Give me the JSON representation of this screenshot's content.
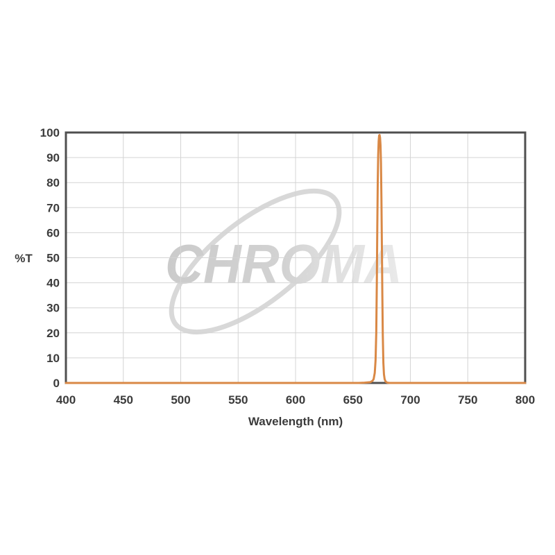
{
  "page": {
    "background_color": "#ffffff"
  },
  "watermark": {
    "text": "CHROMA",
    "ellipse_color": "#d8d8d8",
    "text_color_start": "#cccccc",
    "text_color_end": "#e9e9e9"
  },
  "chart_data": {
    "type": "line",
    "title": "",
    "xlabel": "Wavelength (nm)",
    "ylabel": "%T",
    "xlim": [
      400,
      800
    ],
    "ylim": [
      0,
      100
    ],
    "xticks": [
      400,
      450,
      500,
      550,
      600,
      650,
      700,
      750,
      800
    ],
    "yticks": [
      0,
      10,
      20,
      30,
      40,
      50,
      60,
      70,
      80,
      90,
      100
    ],
    "grid": true,
    "legend": false,
    "grid_color": "#d4d4d4",
    "border_color": "#4f4f4f",
    "tick_label_color": "#3b3b3b",
    "series": [
      {
        "name": "%T",
        "color": "#d98845",
        "points": [
          [
            400,
            0
          ],
          [
            420,
            0
          ],
          [
            440,
            0
          ],
          [
            460,
            0
          ],
          [
            480,
            0
          ],
          [
            500,
            0
          ],
          [
            520,
            0
          ],
          [
            540,
            0
          ],
          [
            560,
            0
          ],
          [
            580,
            0
          ],
          [
            600,
            0
          ],
          [
            620,
            0
          ],
          [
            640,
            0
          ],
          [
            655,
            0
          ],
          [
            660,
            0.1
          ],
          [
            665,
            0.3
          ],
          [
            667,
            0.8
          ],
          [
            668,
            1.5
          ],
          [
            669,
            4
          ],
          [
            669.7,
            9
          ],
          [
            670.3,
            20
          ],
          [
            670.8,
            40
          ],
          [
            671.2,
            62
          ],
          [
            671.6,
            80
          ],
          [
            672,
            91
          ],
          [
            672.4,
            96.5
          ],
          [
            672.8,
            98.8
          ],
          [
            673.2,
            99
          ],
          [
            673.6,
            98
          ],
          [
            674,
            95
          ],
          [
            674.4,
            88
          ],
          [
            674.8,
            74
          ],
          [
            675.2,
            55
          ],
          [
            675.6,
            35
          ],
          [
            676,
            19
          ],
          [
            676.5,
            8
          ],
          [
            677,
            3.5
          ],
          [
            677.6,
            1.5
          ],
          [
            678.5,
            0.5
          ],
          [
            680,
            0.1
          ],
          [
            682,
            0
          ],
          [
            700,
            0
          ],
          [
            720,
            0
          ],
          [
            740,
            0
          ],
          [
            760,
            0
          ],
          [
            780,
            0
          ],
          [
            800,
            0
          ]
        ]
      }
    ]
  }
}
